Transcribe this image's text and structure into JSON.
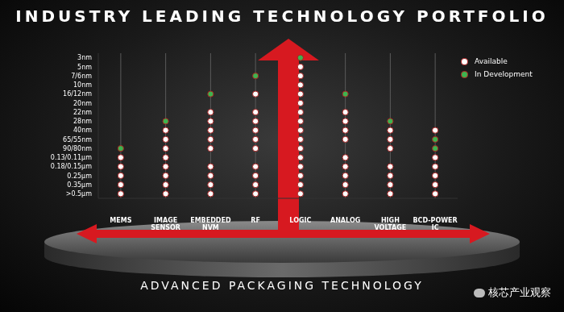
{
  "chart_data": {
    "type": "scatter",
    "title": "INDUSTRY LEADING TECHNOLOGY PORTFOLIO",
    "annotations": [
      "ADVANCED PACKAGING TECHNOLOGY",
      "核芯产业观察"
    ],
    "categories": [
      "MEMS",
      "IMAGE SENSOR",
      "EMBEDDED NVM",
      "RF",
      "LOGIC",
      "ANALOG",
      "HIGH VOLTAGE",
      "BCD-POWER IC"
    ],
    "y_categories": [
      "3nm",
      "5nm",
      "7/6nm",
      "10nm",
      "16/12nm",
      "20nm",
      "22nm",
      "28nm",
      "40nm",
      "65/55nm",
      "90/80nm",
      "0.13/0.11µm",
      "0.18/0.15µm",
      "0.25µm",
      "0.35µm",
      ">0.5µm"
    ],
    "legend": "upper right",
    "series": [
      {
        "name": "Available",
        "color": "#ffffff",
        "x": [
          "MEMS",
          "MEMS",
          "MEMS",
          "MEMS",
          "MEMS",
          "IMAGE SENSOR",
          "IMAGE SENSOR",
          "IMAGE SENSOR",
          "IMAGE SENSOR",
          "IMAGE SENSOR",
          "IMAGE SENSOR",
          "IMAGE SENSOR",
          "IMAGE SENSOR",
          "EMBEDDED NVM",
          "EMBEDDED NVM",
          "EMBEDDED NVM",
          "EMBEDDED NVM",
          "EMBEDDED NVM",
          "EMBEDDED NVM",
          "EMBEDDED NVM",
          "EMBEDDED NVM",
          "EMBEDDED NVM",
          "RF",
          "RF",
          "RF",
          "RF",
          "RF",
          "RF",
          "RF",
          "RF",
          "RF",
          "RF",
          "LOGIC",
          "LOGIC",
          "LOGIC",
          "LOGIC",
          "LOGIC",
          "LOGIC",
          "LOGIC",
          "LOGIC",
          "LOGIC",
          "LOGIC",
          "LOGIC",
          "LOGIC",
          "LOGIC",
          "LOGIC",
          "LOGIC",
          "ANALOG",
          "ANALOG",
          "ANALOG",
          "ANALOG",
          "ANALOG",
          "ANALOG",
          "ANALOG",
          "ANALOG",
          "ANALOG",
          "HIGH VOLTAGE",
          "HIGH VOLTAGE",
          "HIGH VOLTAGE",
          "HIGH VOLTAGE",
          "HIGH VOLTAGE",
          "HIGH VOLTAGE",
          "HIGH VOLTAGE",
          "BCD-POWER IC",
          "BCD-POWER IC",
          "BCD-POWER IC",
          "BCD-POWER IC",
          "BCD-POWER IC",
          "BCD-POWER IC"
        ],
        "y": [
          "0.13/0.11µm",
          "0.18/0.15µm",
          "0.25µm",
          "0.35µm",
          ">0.5µm",
          "40nm",
          "65/55nm",
          "90/80nm",
          "0.13/0.11µm",
          "0.18/0.15µm",
          "0.25µm",
          "0.35µm",
          ">0.5µm",
          "22nm",
          "28nm",
          "40nm",
          "65/55nm",
          "90/80nm",
          "0.18/0.15µm",
          "0.25µm",
          "0.35µm",
          ">0.5µm",
          "16/12nm",
          "22nm",
          "28nm",
          "40nm",
          "65/55nm",
          "90/80nm",
          "0.18/0.15µm",
          "0.25µm",
          "0.35µm",
          ">0.5µm",
          "5nm",
          "7/6nm",
          "10nm",
          "16/12nm",
          "20nm",
          "22nm",
          "28nm",
          "40nm",
          "65/55nm",
          "90/80nm",
          "0.13/0.11µm",
          "0.18/0.15µm",
          "0.25µm",
          "0.35µm",
          ">0.5µm",
          "22nm",
          "28nm",
          "40nm",
          "65/55nm",
          "0.13/0.11µm",
          "0.18/0.15µm",
          "0.25µm",
          "0.35µm",
          ">0.5µm",
          "40nm",
          "65/55nm",
          "90/80nm",
          "0.18/0.15µm",
          "0.25µm",
          "0.35µm",
          ">0.5µm",
          "40nm",
          "0.13/0.11µm",
          "0.18/0.15µm",
          "0.25µm",
          "0.35µm",
          ">0.5µm"
        ]
      },
      {
        "name": "In Development",
        "color": "#3fb34f",
        "x": [
          "MEMS",
          "IMAGE SENSOR",
          "EMBEDDED NVM",
          "RF",
          "LOGIC",
          "ANALOG",
          "HIGH VOLTAGE",
          "BCD-POWER IC",
          "BCD-POWER IC"
        ],
        "y": [
          "90/80nm",
          "28nm",
          "16/12nm",
          "7/6nm",
          "3nm",
          "16/12nm",
          "28nm",
          "65/55nm",
          "90/80nm"
        ]
      }
    ]
  }
}
